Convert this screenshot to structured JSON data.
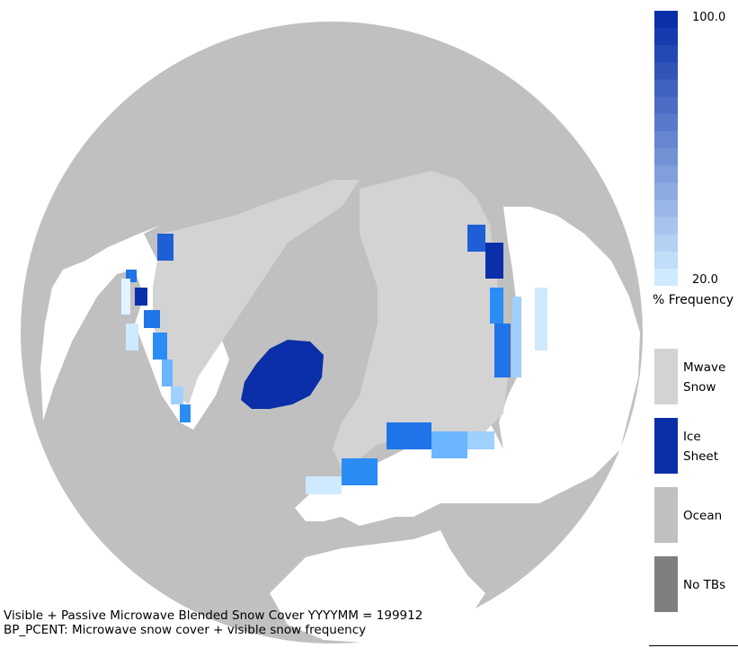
{
  "colors": {
    "ocean": "#c0c0c0",
    "land": "#ffffff",
    "mwave_snow": "#d3d3d3",
    "ice_sheet": "#0a2fa8",
    "no_tbs": "#7f7f7f",
    "freq_low": "#cfe9ff",
    "freq_high": "#0a2fa8"
  },
  "colorbar": {
    "max_label": "100.0",
    "min_label": "20.0",
    "title": "% Frequency",
    "steps": 16
  },
  "legend": [
    {
      "label": "Mwave Snow",
      "color": "#d3d3d3"
    },
    {
      "label": "Ice Sheet",
      "color": "#0a2fa8"
    },
    {
      "label": "Ocean",
      "color": "#c0c0c0"
    },
    {
      "label": "No TBs",
      "color": "#7f7f7f"
    }
  ],
  "caption": {
    "line1": "Visible + Passive Microwave Blended Snow Cover YYYYMM = 199912",
    "line2": "BP_PCENT: Microwave snow cover + visible snow frequency"
  }
}
